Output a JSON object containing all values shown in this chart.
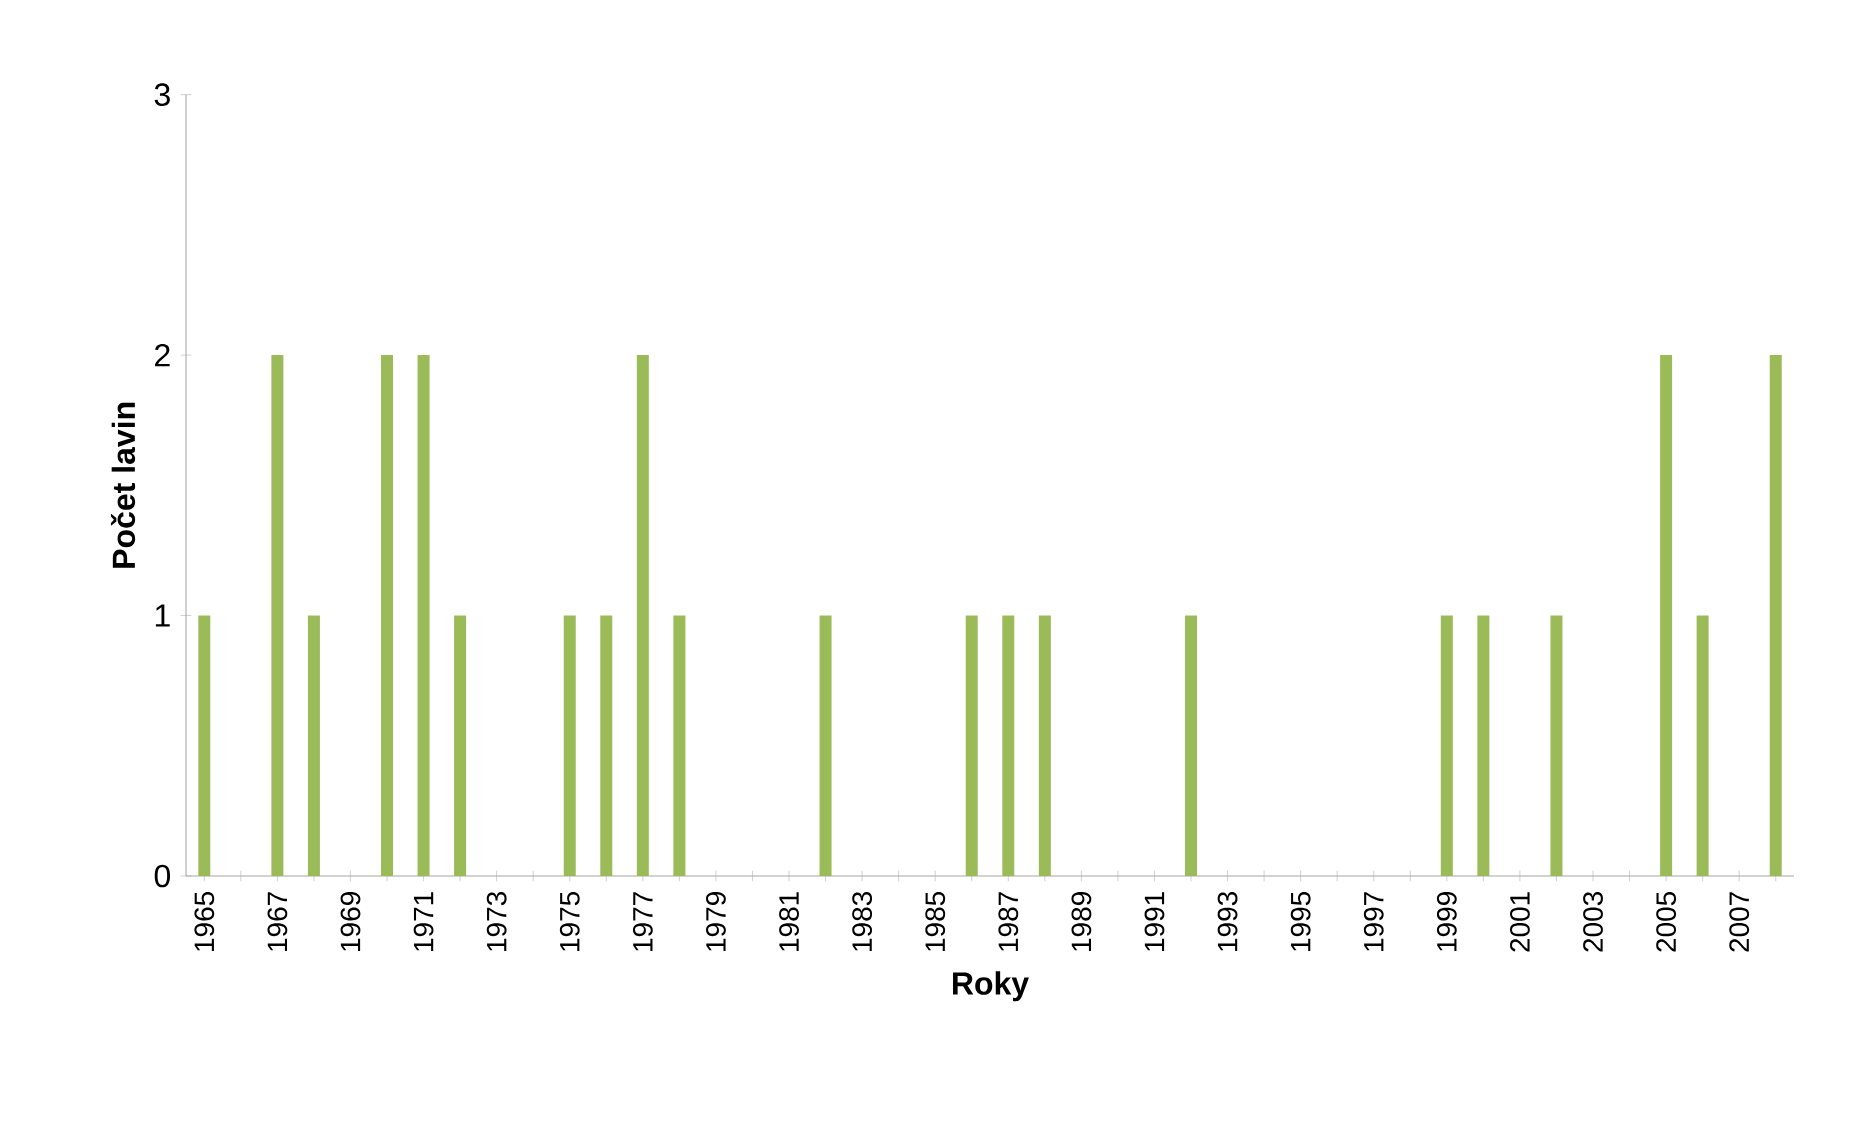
{
  "chart_data": {
    "type": "bar",
    "xlabel": "Roky",
    "ylabel": "Počet lavin",
    "categories": [
      "1965",
      null,
      "1967",
      null,
      "1969",
      null,
      "1971",
      null,
      "1973",
      null,
      "1975",
      null,
      "1977",
      null,
      "1979",
      null,
      "1981",
      null,
      "1983",
      null,
      "1985",
      null,
      "1987",
      null,
      "1989",
      null,
      "1991",
      null,
      "1993",
      null,
      "1995",
      null,
      "1997",
      null,
      "1999",
      null,
      "2001",
      null,
      "2003",
      null,
      "2005",
      null,
      "2007",
      null
    ],
    "values": [
      1,
      0,
      2,
      1,
      0,
      2,
      2,
      1,
      0,
      0,
      1,
      1,
      2,
      1,
      0,
      0,
      0,
      1,
      0,
      0,
      0,
      1,
      1,
      1,
      0,
      0,
      0,
      1,
      0,
      0,
      0,
      0,
      0,
      0,
      1,
      1,
      0,
      1,
      0,
      0,
      2,
      1,
      0,
      2
    ],
    "color": "#9bbb59",
    "ylim": [
      0,
      3
    ],
    "yticks": [
      0,
      1,
      2,
      3
    ]
  }
}
